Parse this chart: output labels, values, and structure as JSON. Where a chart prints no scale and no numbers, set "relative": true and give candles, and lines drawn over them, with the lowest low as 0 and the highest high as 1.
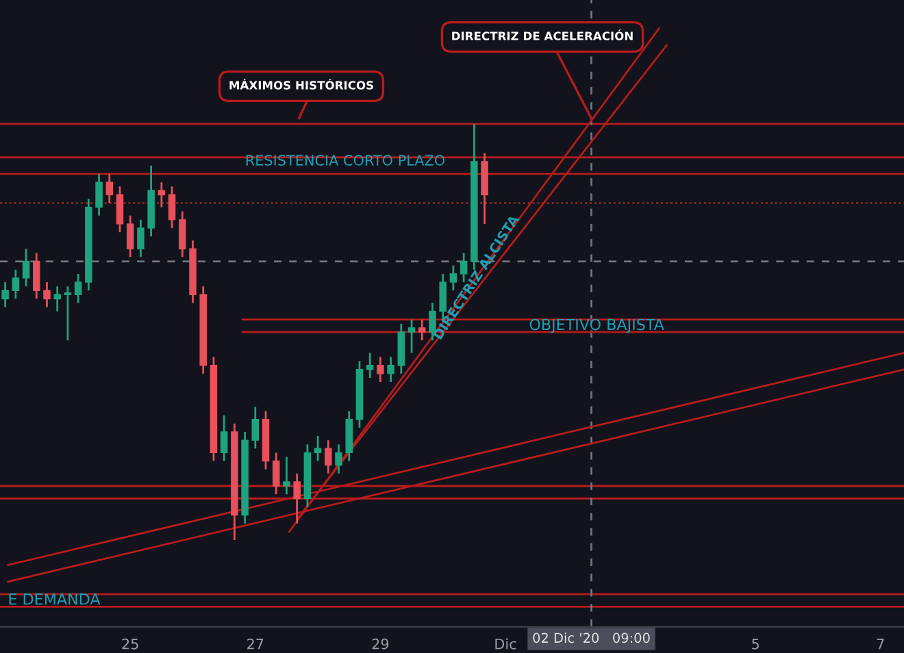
{
  "chart_data": {
    "type": "candlestick",
    "relative": true,
    "x": [
      "2020-11-23T00:00",
      "2020-11-23T04:00",
      "2020-11-23T08:00",
      "2020-11-23T12:00",
      "2020-11-23T16:00",
      "2020-11-23T20:00",
      "2020-11-24T00:00",
      "2020-11-24T04:00",
      "2020-11-24T08:00",
      "2020-11-24T12:00",
      "2020-11-24T16:00",
      "2020-11-24T20:00",
      "2020-11-25T00:00",
      "2020-11-25T04:00",
      "2020-11-25T08:00",
      "2020-11-25T12:00",
      "2020-11-25T16:00",
      "2020-11-25T20:00",
      "2020-11-26T00:00",
      "2020-11-26T04:00",
      "2020-11-26T08:00",
      "2020-11-26T12:00",
      "2020-11-26T16:00",
      "2020-11-26T20:00",
      "2020-11-27T00:00",
      "2020-11-27T04:00",
      "2020-11-27T08:00",
      "2020-11-27T12:00",
      "2020-11-27T16:00",
      "2020-11-27T20:00",
      "2020-11-28T00:00",
      "2020-11-28T04:00",
      "2020-11-28T08:00",
      "2020-11-28T12:00",
      "2020-11-28T16:00",
      "2020-11-28T20:00",
      "2020-11-29T00:00",
      "2020-11-29T04:00",
      "2020-11-29T08:00",
      "2020-11-29T12:00",
      "2020-11-29T16:00",
      "2020-11-29T20:00",
      "2020-11-30T00:00",
      "2020-11-30T04:00",
      "2020-11-30T08:00",
      "2020-11-30T12:00",
      "2020-11-30T16:00"
    ],
    "ohlc": [
      [
        0.58,
        0.62,
        0.56,
        0.6
      ],
      [
        0.6,
        0.65,
        0.58,
        0.63
      ],
      [
        0.63,
        0.7,
        0.61,
        0.67
      ],
      [
        0.67,
        0.69,
        0.58,
        0.6
      ],
      [
        0.6,
        0.62,
        0.56,
        0.58
      ],
      [
        0.58,
        0.61,
        0.55,
        0.59
      ],
      [
        0.59,
        0.61,
        0.48,
        0.59
      ],
      [
        0.59,
        0.64,
        0.57,
        0.62
      ],
      [
        0.62,
        0.82,
        0.6,
        0.8
      ],
      [
        0.8,
        0.88,
        0.78,
        0.86
      ],
      [
        0.86,
        0.88,
        0.81,
        0.83
      ],
      [
        0.83,
        0.85,
        0.74,
        0.76
      ],
      [
        0.76,
        0.78,
        0.68,
        0.7
      ],
      [
        0.7,
        0.77,
        0.68,
        0.75
      ],
      [
        0.75,
        0.9,
        0.73,
        0.84
      ],
      [
        0.84,
        0.86,
        0.8,
        0.83
      ],
      [
        0.83,
        0.85,
        0.75,
        0.77
      ],
      [
        0.77,
        0.79,
        0.68,
        0.7
      ],
      [
        0.7,
        0.72,
        0.57,
        0.59
      ],
      [
        0.59,
        0.61,
        0.4,
        0.42
      ],
      [
        0.42,
        0.44,
        0.19,
        0.21
      ],
      [
        0.21,
        0.3,
        0.19,
        0.26
      ],
      [
        0.26,
        0.28,
        0.0,
        0.06
      ],
      [
        0.06,
        0.26,
        0.04,
        0.24
      ],
      [
        0.24,
        0.32,
        0.22,
        0.29
      ],
      [
        0.29,
        0.31,
        0.17,
        0.19
      ],
      [
        0.19,
        0.21,
        0.11,
        0.13
      ],
      [
        0.13,
        0.2,
        0.11,
        0.14
      ],
      [
        0.14,
        0.16,
        0.04,
        0.1
      ],
      [
        0.1,
        0.23,
        0.08,
        0.21
      ],
      [
        0.21,
        0.25,
        0.19,
        0.22
      ],
      [
        0.22,
        0.24,
        0.16,
        0.18
      ],
      [
        0.18,
        0.23,
        0.16,
        0.21
      ],
      [
        0.21,
        0.31,
        0.19,
        0.29
      ],
      [
        0.29,
        0.43,
        0.27,
        0.41
      ],
      [
        0.41,
        0.45,
        0.39,
        0.42
      ],
      [
        0.42,
        0.44,
        0.38,
        0.4
      ],
      [
        0.4,
        0.44,
        0.38,
        0.42
      ],
      [
        0.42,
        0.52,
        0.4,
        0.5
      ],
      [
        0.5,
        0.53,
        0.45,
        0.51
      ],
      [
        0.51,
        0.53,
        0.48,
        0.5
      ],
      [
        0.5,
        0.57,
        0.48,
        0.55
      ],
      [
        0.55,
        0.64,
        0.53,
        0.62
      ],
      [
        0.62,
        0.66,
        0.6,
        0.64
      ],
      [
        0.64,
        0.69,
        0.62,
        0.67
      ],
      [
        0.67,
        1.0,
        0.65,
        0.91
      ],
      [
        0.91,
        0.93,
        0.76,
        0.83
      ]
    ],
    "series": [
      {
        "type": "line",
        "color": "#b71c1c",
        "x": [
          "2020-11-27T13:00",
          "2020-12-03T11:00"
        ],
        "values": [
          0.02,
          1.23
        ]
      },
      {
        "type": "line",
        "color": "#b71c1c",
        "x": [
          "2020-11-27T16:00",
          "2020-12-03T14:00"
        ],
        "values": [
          0.05,
          1.19
        ]
      },
      {
        "type": "line",
        "color": "#b71c1c",
        "x": [
          "2020-11-23T01:00",
          "2020-12-07T09:00"
        ],
        "values": [
          -0.06,
          0.45
        ]
      },
      {
        "type": "line",
        "color": "#b71c1c",
        "x": [
          "2020-11-23T01:00",
          "2020-12-07T09:00"
        ],
        "values": [
          -0.1,
          0.41
        ]
      },
      {
        "type": "line",
        "color": "#b71c1c",
        "x": [
          "2020-11-26T19:00",
          "2020-12-07T09:00"
        ],
        "values": [
          0.53,
          0.53
        ]
      },
      {
        "type": "line",
        "color": "#b71c1c",
        "x": [
          "2020-11-26T19:00",
          "2020-12-07T09:00"
        ],
        "values": [
          0.5,
          0.5
        ]
      }
    ],
    "ref_lines": [
      {
        "axis": "y",
        "value": 1.0,
        "color": "#b71c1c",
        "line_style": "solid"
      },
      {
        "axis": "y",
        "value": 0.92,
        "color": "#b71c1c",
        "line_style": "solid"
      },
      {
        "axis": "y",
        "value": 0.88,
        "color": "#b71c1c",
        "line_style": "solid"
      },
      {
        "axis": "y",
        "value": 0.81,
        "color": "#8a2a2a",
        "line_style": "dotted"
      },
      {
        "axis": "y",
        "value": 0.67,
        "color": "#6f7683",
        "line_style": "dashed"
      },
      {
        "axis": "y",
        "value": 0.13,
        "color": "#b71c1c",
        "line_style": "solid"
      },
      {
        "axis": "y",
        "value": 0.1,
        "color": "#b71c1c",
        "line_style": "solid"
      },
      {
        "axis": "y",
        "value": -0.13,
        "color": "#b71c1c",
        "line_style": "solid"
      },
      {
        "axis": "y",
        "value": -0.16,
        "color": "#b71c1c",
        "line_style": "solid"
      },
      {
        "axis": "x",
        "value": "2020-12-02T09:00",
        "label": "02 Dic '20   09:00",
        "color": "#6f7683",
        "line_style": "dashed"
      }
    ],
    "annotations": [
      "MÁXIMOS HISTÓRICOS",
      "DIRECTRIZ DE ACELERACIÓN",
      "RESISTENCIA CORTO PLAZO",
      {
        "text": "OBJETIVO BAJISTA",
        "x": "2020-12-02T11:00",
        "y": 0.515
      },
      {
        "text": "DIRECTRIZ ALCISTA",
        "x": "2020-11-30T13:00",
        "y": 0.63
      },
      {
        "text": "E DEMANDA",
        "x": "2020-11-23T01:00",
        "y": -0.145
      }
    ],
    "xlim": [
      "2020-11-22T22:00",
      "2020-12-07T09:00"
    ],
    "xticks": [
      {
        "value": "2020-11-25",
        "label": "25"
      },
      {
        "value": "2020-11-27",
        "label": "27"
      },
      {
        "value": "2020-11-29",
        "label": "29"
      },
      {
        "value": "2020-12-01",
        "label": "Dic"
      },
      {
        "value": "2020-12-05",
        "label": "5"
      },
      {
        "value": "2020-12-07",
        "label": "7"
      }
    ],
    "tick_labels": "x",
    "grid": false,
    "legend": false
  }
}
